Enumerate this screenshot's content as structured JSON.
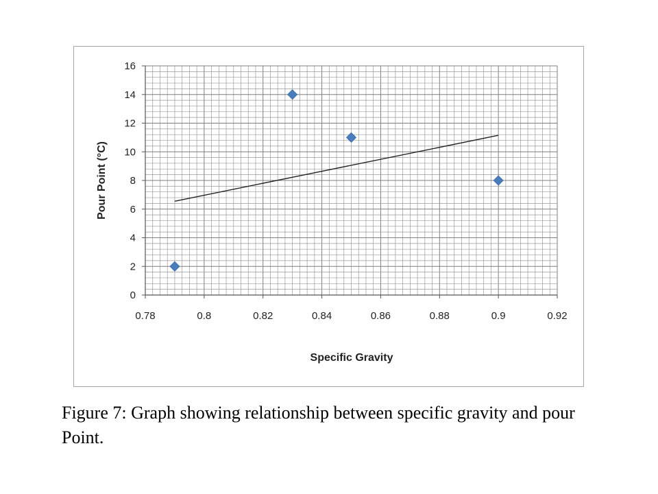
{
  "caption": "Figure 7: Graph showing relationship between specific gravity and pour Point.",
  "chart_data": {
    "type": "scatter",
    "xlabel": "Specific Gravity",
    "ylabel": "Pour Point (°C)",
    "xlim": [
      0.78,
      0.92
    ],
    "ylim": [
      0,
      16
    ],
    "x_ticks": [
      "0.78",
      "0.8",
      "0.82",
      "0.84",
      "0.86",
      "0.88",
      "0.9",
      "0.92"
    ],
    "y_ticks": [
      "0",
      "2",
      "4",
      "6",
      "8",
      "10",
      "12",
      "14",
      "16"
    ],
    "grid": true,
    "legend": "none",
    "marker": "diamond",
    "marker_color": "#4a7ebb",
    "series": [
      {
        "x": [
          0.79,
          0.83,
          0.85,
          0.9
        ],
        "y": [
          2,
          14,
          11,
          8
        ]
      }
    ],
    "trendline": {
      "type": "linear",
      "x": [
        0.79,
        0.9
      ],
      "y": [
        6.55,
        11.15
      ],
      "color": "#222222"
    }
  }
}
